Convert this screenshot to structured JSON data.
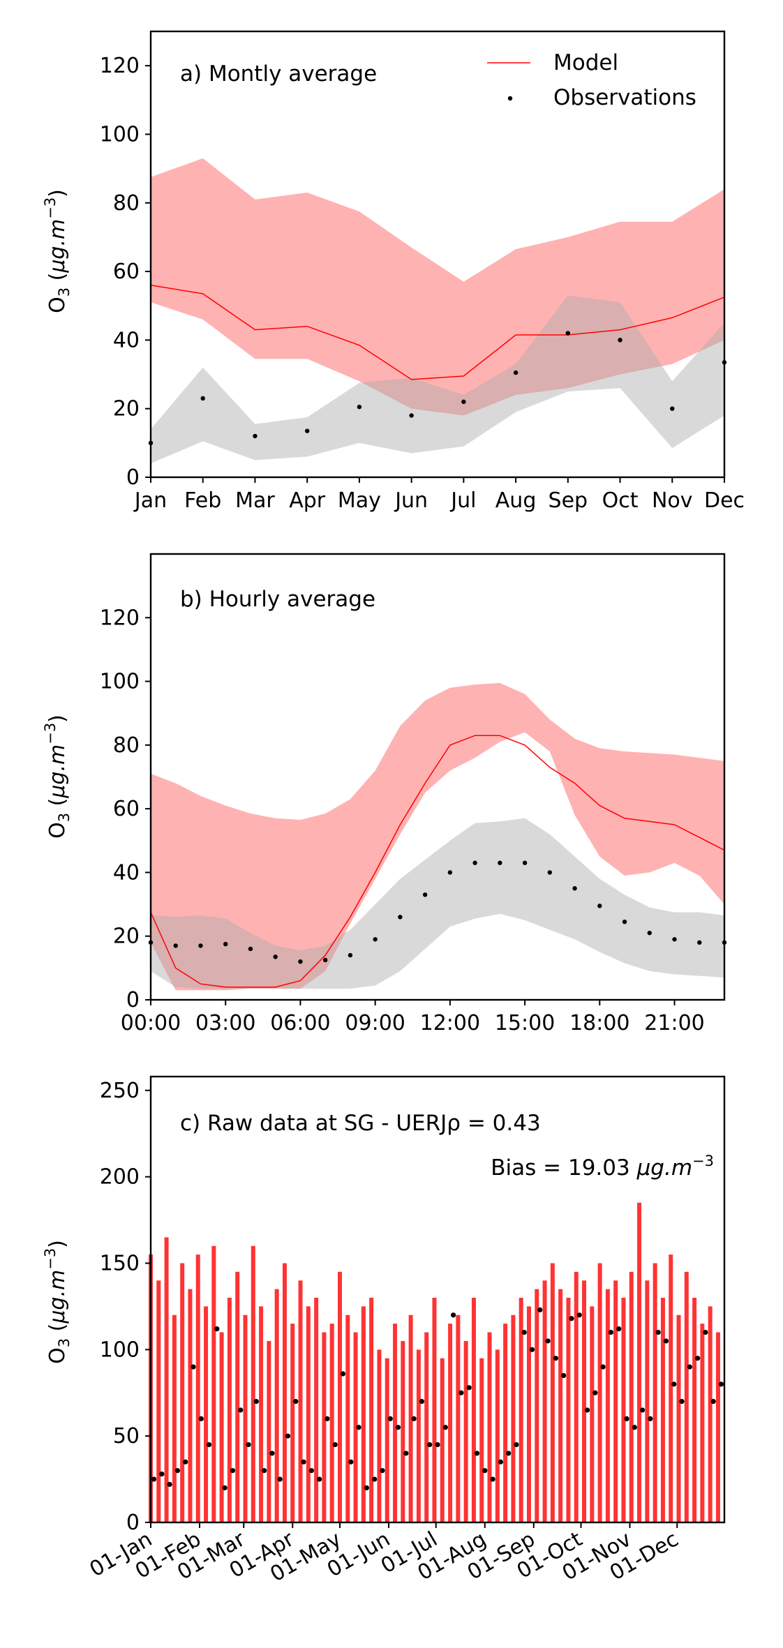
{
  "chart_data": [
    {
      "type": "line",
      "annotation": "a) Montly average",
      "ylabel": "O_3 (µg.m^{-3})",
      "ylim": [
        0,
        130
      ],
      "yticks": [
        0,
        20,
        40,
        60,
        80,
        100,
        120
      ],
      "categories": [
        "Jan",
        "Feb",
        "Mar",
        "Apr",
        "May",
        "Jun",
        "Jul",
        "Aug",
        "Sep",
        "Oct",
        "Nov",
        "Dec"
      ],
      "legend": {
        "position": "top-right",
        "entries": [
          "Model",
          "Observations"
        ]
      },
      "series": [
        {
          "name": "Model",
          "color": "#ff0000",
          "values": [
            56,
            53.5,
            43,
            44,
            38.5,
            28.5,
            29.5,
            41.5,
            41.5,
            43,
            46.5,
            52.5
          ]
        },
        {
          "name": "Observations",
          "color": "#000000",
          "values": [
            10,
            23,
            12,
            13.5,
            20.5,
            18,
            22,
            30.5,
            42,
            40,
            20,
            33.5
          ]
        }
      ],
      "bands": [
        {
          "series": "Model",
          "color": "#ff5555",
          "lower": [
            51,
            46,
            34.5,
            34.5,
            28,
            20,
            18,
            24,
            26,
            30,
            33,
            40
          ],
          "upper": [
            87.5,
            93,
            81,
            83,
            77.5,
            67,
            57,
            66.5,
            70,
            74.5,
            74.5,
            84
          ]
        },
        {
          "series": "Observations",
          "color": "#aaaaaa",
          "lower": [
            4,
            10.5,
            5,
            6,
            10,
            7,
            9,
            19,
            25,
            26,
            8.5,
            18
          ],
          "upper": [
            14,
            32,
            15.5,
            17.5,
            27.5,
            29,
            24,
            33,
            53,
            51,
            28,
            45
          ]
        }
      ]
    },
    {
      "type": "line",
      "annotation": "b) Hourly average",
      "ylabel": "O_3 (µg.m^{-3})",
      "ylim": [
        0,
        140
      ],
      "yticks": [
        0,
        20,
        40,
        60,
        80,
        100,
        120
      ],
      "xticks": [
        "00:00",
        "03:00",
        "06:00",
        "09:00",
        "12:00",
        "15:00",
        "18:00",
        "21:00"
      ],
      "x": [
        0,
        1,
        2,
        3,
        4,
        5,
        6,
        7,
        8,
        9,
        10,
        11,
        12,
        13,
        14,
        15,
        16,
        17,
        18,
        19,
        20,
        21,
        22,
        23
      ],
      "series": [
        {
          "name": "Model",
          "color": "#ff0000",
          "values": [
            27.5,
            10,
            5,
            4,
            4,
            4,
            6,
            14,
            26,
            40,
            55,
            68,
            80,
            83,
            83,
            80,
            73,
            68,
            61,
            57,
            56,
            55,
            51,
            47
          ]
        },
        {
          "name": "Observations",
          "color": "#000000",
          "values": [
            18,
            17,
            17,
            17.5,
            16,
            13.5,
            12,
            12.5,
            14,
            19,
            26,
            33,
            40,
            43,
            43,
            43,
            40,
            35,
            29.5,
            24.5,
            21,
            19,
            18,
            18
          ]
        }
      ],
      "bands": [
        {
          "series": "Model",
          "color": "#ff5555",
          "lower": [
            18,
            3,
            3,
            3,
            3.5,
            3.5,
            3.5,
            9,
            24,
            38,
            52,
            65,
            72,
            76,
            81,
            84,
            78,
            58,
            45,
            39,
            40,
            43,
            39,
            30
          ],
          "upper": [
            71,
            68,
            64,
            61,
            58.5,
            57,
            56.5,
            58.5,
            63,
            72,
            86,
            94,
            98,
            99,
            99.5,
            96,
            88,
            82,
            79,
            78,
            77.5,
            77,
            76,
            75
          ]
        },
        {
          "series": "Observations",
          "color": "#aaaaaa",
          "lower": [
            9,
            4,
            3.5,
            3.5,
            3.5,
            3.5,
            3.5,
            3.5,
            3.5,
            4.5,
            9,
            16,
            23,
            25.5,
            27,
            25,
            22,
            19,
            15,
            11.5,
            9,
            8,
            7.5,
            7
          ],
          "upper": [
            26.5,
            26,
            26.5,
            25.5,
            21,
            17,
            15.5,
            17,
            22,
            30,
            38,
            44,
            50,
            55.5,
            56,
            57,
            52,
            45,
            38,
            33,
            29,
            27.5,
            27.5,
            26.5
          ]
        }
      ]
    },
    {
      "type": "line",
      "annotation": "c) Raw data at SG - UERJ",
      "rho_label": "ρ = 0.43",
      "bias_label": "Bias = 19.03 µg.m^{-3}",
      "ylabel": "O_3 (µg.m^{-3})",
      "ylim": [
        0,
        258
      ],
      "yticks": [
        0,
        50,
        100,
        150,
        200,
        250
      ],
      "xticks": [
        "01-Jan",
        "01-Feb",
        "01-Mar",
        "01-Apr",
        "01-May",
        "01-Jun",
        "01-Jul",
        "01-Aug",
        "01-Sep",
        "01-Oct",
        "01-Nov",
        "01-Dec"
      ],
      "x_unit": "day of year",
      "series": [
        {
          "name": "Model",
          "color": "#ff0000",
          "x": [
            1,
            6,
            11,
            16,
            21,
            26,
            31,
            36,
            41,
            46,
            51,
            56,
            61,
            66,
            71,
            76,
            81,
            86,
            91,
            96,
            101,
            106,
            111,
            116,
            121,
            126,
            131,
            136,
            141,
            146,
            151,
            156,
            161,
            166,
            171,
            176,
            181,
            186,
            191,
            196,
            201,
            206,
            211,
            216,
            221,
            226,
            231,
            236,
            241,
            246,
            251,
            256,
            261,
            266,
            271,
            276,
            281,
            286,
            291,
            296,
            301,
            306,
            311,
            316,
            321,
            326,
            331,
            336,
            341,
            346,
            351,
            356,
            361
          ],
          "values": [
            155,
            140,
            165,
            120,
            150,
            135,
            155,
            125,
            160,
            110,
            130,
            145,
            120,
            160,
            125,
            105,
            135,
            150,
            115,
            140,
            125,
            130,
            110,
            115,
            145,
            120,
            110,
            125,
            130,
            100,
            95,
            115,
            105,
            120,
            100,
            110,
            130,
            95,
            115,
            120,
            105,
            130,
            95,
            110,
            100,
            115,
            120,
            130,
            125,
            135,
            140,
            150,
            135,
            130,
            145,
            140,
            125,
            150,
            135,
            140,
            130,
            145,
            185,
            140,
            150,
            130,
            155,
            120,
            145,
            130,
            115,
            125,
            110
          ]
        },
        {
          "name": "Observations",
          "color": "#000000",
          "x": [
            3,
            8,
            13,
            18,
            23,
            28,
            33,
            38,
            43,
            48,
            53,
            58,
            63,
            68,
            73,
            78,
            83,
            88,
            93,
            98,
            103,
            108,
            113,
            118,
            123,
            128,
            133,
            138,
            143,
            148,
            153,
            158,
            163,
            168,
            173,
            178,
            183,
            188,
            193,
            198,
            203,
            208,
            213,
            218,
            223,
            228,
            233,
            238,
            243,
            248,
            253,
            258,
            263,
            268,
            273,
            278,
            283,
            288,
            293,
            298,
            303,
            308,
            313,
            318,
            323,
            328,
            333,
            338,
            343,
            348,
            353,
            358,
            363
          ],
          "values": [
            25,
            28,
            22,
            30,
            35,
            90,
            60,
            45,
            112,
            20,
            30,
            65,
            45,
            70,
            30,
            40,
            25,
            50,
            70,
            35,
            30,
            25,
            60,
            45,
            86,
            35,
            55,
            20,
            25,
            30,
            60,
            55,
            40,
            60,
            70,
            45,
            45,
            55,
            120,
            75,
            78,
            40,
            30,
            25,
            35,
            40,
            45,
            110,
            100,
            123,
            105,
            95,
            85,
            118,
            120,
            65,
            75,
            90,
            110,
            112,
            60,
            55,
            65,
            60,
            110,
            105,
            80,
            70,
            90,
            95,
            110,
            70,
            80
          ]
        }
      ]
    }
  ]
}
